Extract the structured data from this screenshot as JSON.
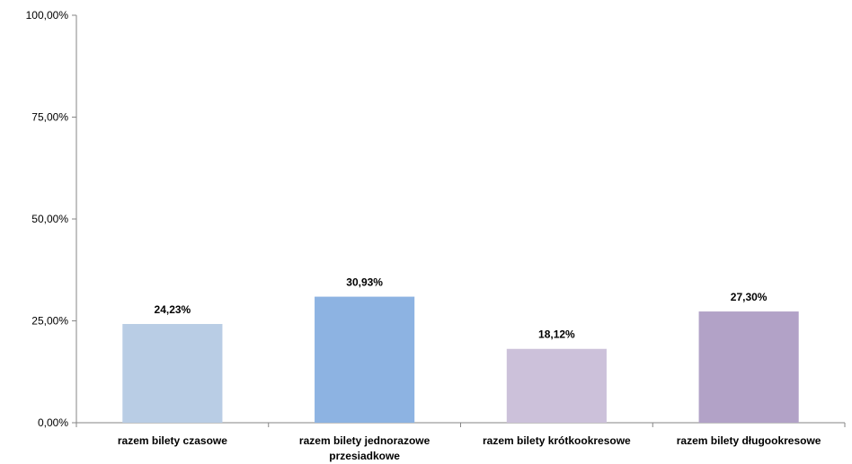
{
  "chart_data": {
    "type": "bar",
    "categories": [
      "razem bilety czasowe",
      "razem bilety jednorazowe przesiadkowe",
      "razem bilety krótkookresowe",
      "razem bilety długookresowe"
    ],
    "category_label_lines": [
      [
        "razem bilety czasowe"
      ],
      [
        "razem bilety jednorazowe",
        "przesiadkowe"
      ],
      [
        "razem bilety krótkookresowe"
      ],
      [
        "razem bilety długookresowe"
      ]
    ],
    "values": [
      24.23,
      30.93,
      18.12,
      27.3
    ],
    "data_labels": [
      "24,23%",
      "30,93%",
      "18,12%",
      "27,30%"
    ],
    "bar_colors": [
      "#b9cde5",
      "#8db3e2",
      "#ccc1da",
      "#b2a2c7"
    ],
    "yticks": [
      0,
      25,
      50,
      75,
      100
    ],
    "ytick_labels": [
      "0,00%",
      "25,00%",
      "50,00%",
      "75,00%",
      "100,00%"
    ],
    "ylim": [
      0,
      100
    ],
    "title": "",
    "xlabel": "",
    "ylabel": "",
    "grid": false,
    "legend": "none"
  }
}
